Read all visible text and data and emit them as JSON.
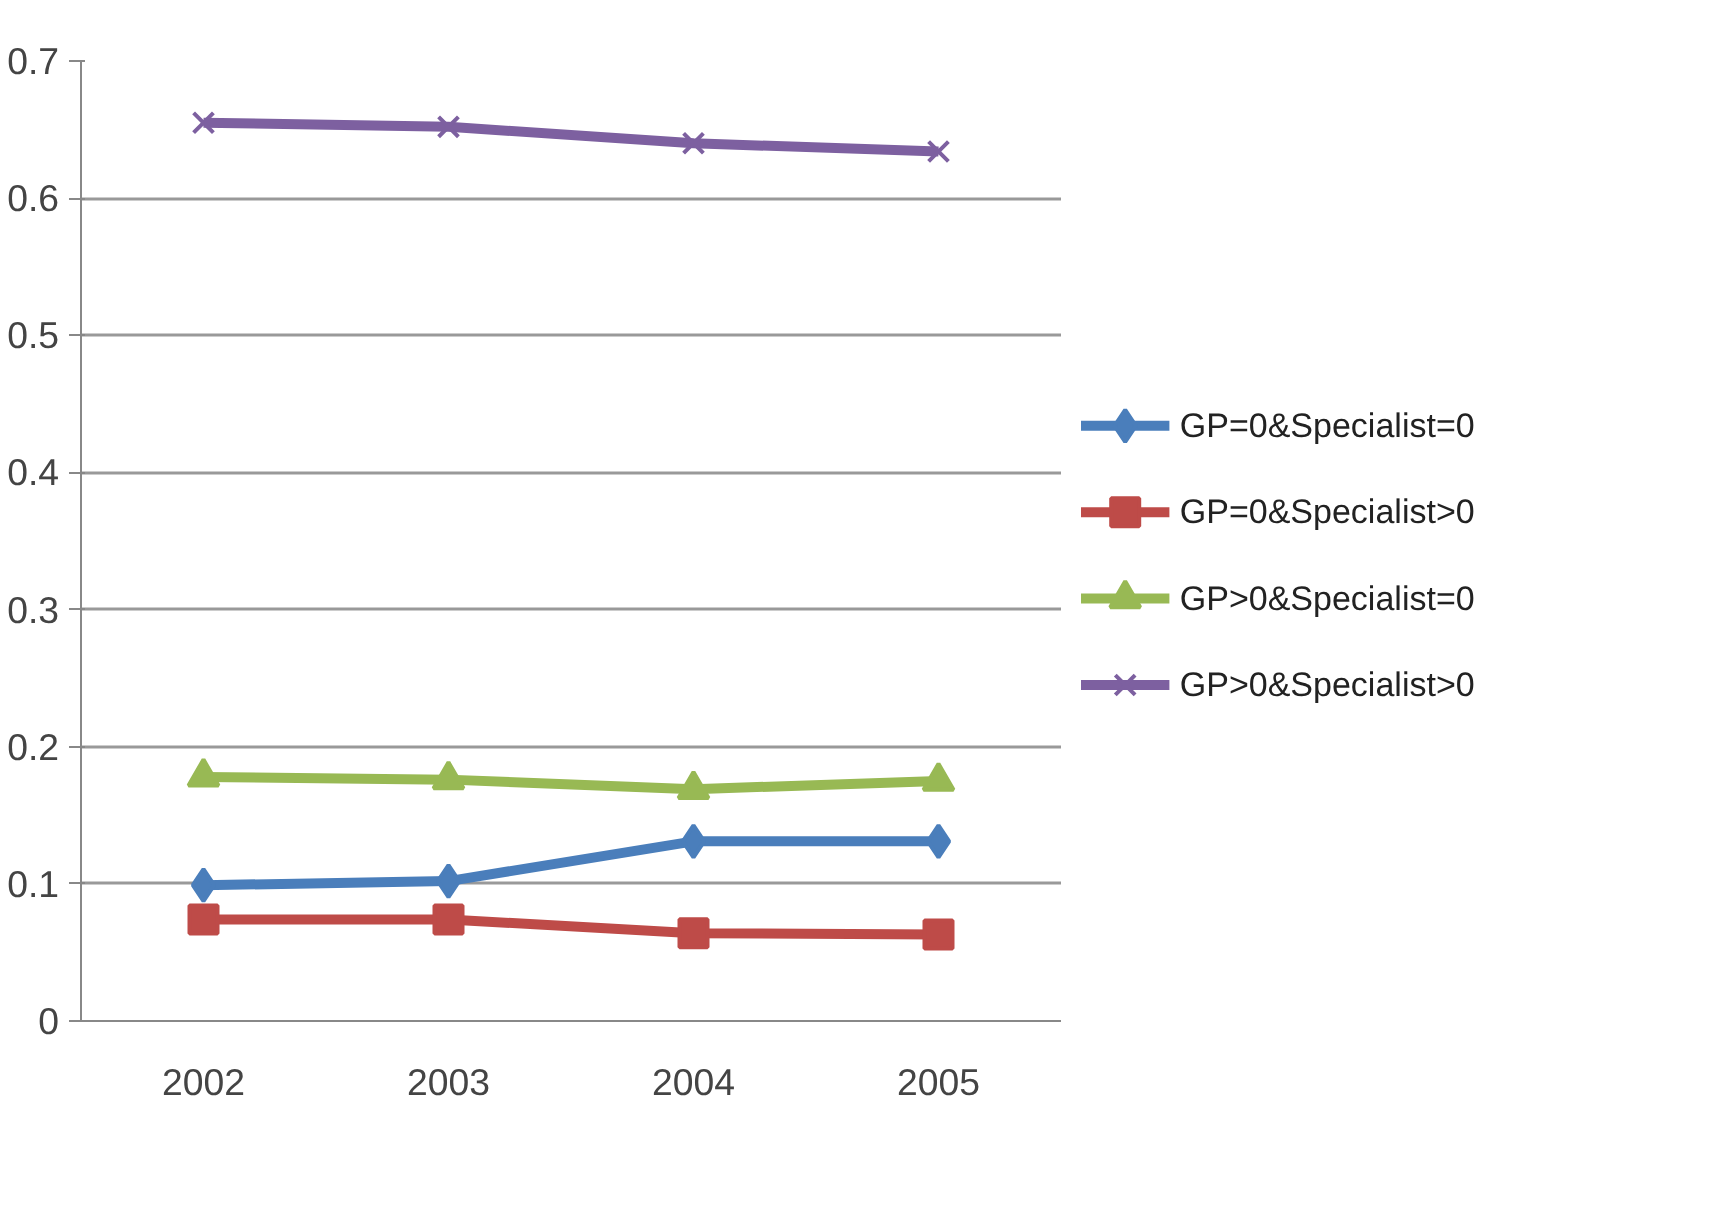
{
  "chart_data": {
    "type": "line",
    "categories": [
      "2002",
      "2003",
      "2004",
      "2005"
    ],
    "ylim": [
      0,
      0.7
    ],
    "yticks": [
      0,
      0.1,
      0.2,
      0.3,
      0.4,
      0.5,
      0.6,
      0.7
    ],
    "grid": "y",
    "legend": "right",
    "line_style": "solid",
    "series": [
      {
        "name": "GP=0&Specialist=0",
        "color": "#4a7ebb",
        "marker": "diamond",
        "values": [
          0.099,
          0.102,
          0.131,
          0.131
        ]
      },
      {
        "name": "GP=0&Specialist>0",
        "color": "#be4b48",
        "marker": "square",
        "values": [
          0.074,
          0.074,
          0.064,
          0.063
        ]
      },
      {
        "name": "GP>0&Specialist=0",
        "color": "#98b954",
        "marker": "triangle",
        "values": [
          0.178,
          0.176,
          0.169,
          0.175
        ]
      },
      {
        "name": "GP>0&Specialist>0",
        "color": "#7d60a0",
        "marker": "cross",
        "values": [
          0.655,
          0.652,
          0.64,
          0.634
        ]
      }
    ]
  }
}
